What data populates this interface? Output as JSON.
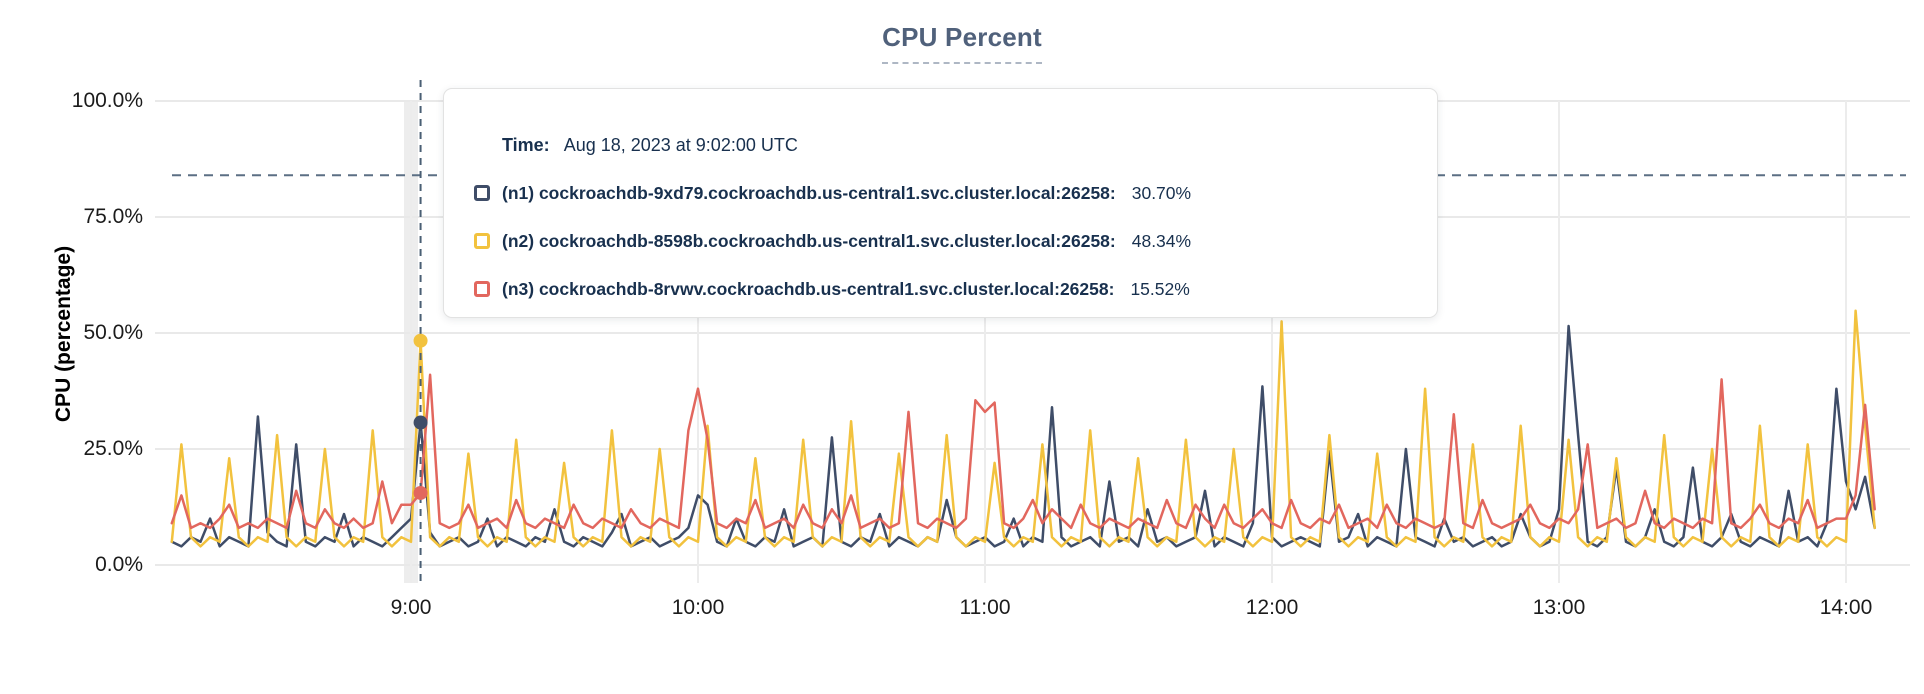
{
  "title": "CPU Percent",
  "colors": {
    "n1": "#3f4d68",
    "n2": "#f2c23e",
    "n3": "#e2675e",
    "grid": "#e9e9e9",
    "hover_band": "#ededed",
    "threshold_dash": "#5b6f84",
    "hover_dash": "#4a5f74",
    "tooltip_text": "#18304e"
  },
  "y_axis": {
    "label": "CPU (percentage)",
    "ticks": [
      {
        "label": "0.0%",
        "value": 0
      },
      {
        "label": "25.0%",
        "value": 25
      },
      {
        "label": "50.0%",
        "value": 50
      },
      {
        "label": "75.0%",
        "value": 75
      },
      {
        "label": "100.0%",
        "value": 100
      }
    ]
  },
  "x_axis": {
    "ticks": [
      {
        "label": "9:00",
        "minutes": 540
      },
      {
        "label": "10:00",
        "minutes": 600
      },
      {
        "label": "11:00",
        "minutes": 660
      },
      {
        "label": "12:00",
        "minutes": 720
      },
      {
        "label": "13:00",
        "minutes": 780
      },
      {
        "label": "14:00",
        "minutes": 840
      }
    ]
  },
  "tooltip": {
    "time_label": "Time:",
    "time_value": "Aug 18, 2023 at 9:02:00 UTC",
    "rows": [
      {
        "series": "n1",
        "name": "(n1) cockroachdb-9xd79.cockroachdb.us-central1.svc.cluster.local:26258:",
        "value": "30.70%"
      },
      {
        "series": "n2",
        "name": "(n2) cockroachdb-8598b.cockroachdb.us-central1.svc.cluster.local:26258:",
        "value": "48.34%"
      },
      {
        "series": "n3",
        "name": "(n3) cockroachdb-8rvwv.cockroachdb.us-central1.svc.cluster.local:26258:",
        "value": "15.52%"
      }
    ]
  },
  "chart_data": {
    "type": "line",
    "title": "CPU Percent",
    "xlabel": "",
    "ylabel": "CPU (percentage)",
    "ylim": [
      0,
      100
    ],
    "y_tick_labels": [
      "0.0%",
      "25.0%",
      "50.0%",
      "75.0%",
      "100.0%"
    ],
    "x_tick_labels": [
      "9:00",
      "10:00",
      "11:00",
      "12:00",
      "13:00",
      "14:00"
    ],
    "grid": true,
    "legend_position": "tooltip-overlay",
    "x_start_min": 490,
    "x_step_min": 2,
    "threshold_percent": 84,
    "hover": {
      "x_min": 542,
      "time": "Aug 18, 2023 at 9:02:00 UTC",
      "values": {
        "n1": 30.7,
        "n2": 48.34,
        "n3": 15.52
      }
    },
    "series": [
      {
        "id": "n1",
        "name": "(n1) cockroachdb-9xd79.cockroachdb.us-central1.svc.cluster.local:26258",
        "color": "#3f4d68",
        "values": [
          5,
          4,
          6,
          5,
          10,
          4,
          6,
          5,
          4,
          32,
          7,
          5,
          4,
          26,
          5,
          4,
          6,
          5,
          11,
          4,
          6,
          5,
          4,
          6,
          8,
          10,
          30.7,
          7,
          4,
          5,
          6,
          4,
          5,
          10,
          4,
          6,
          5,
          4,
          6,
          5,
          12,
          5,
          4,
          6,
          5,
          4,
          7,
          11,
          4,
          5,
          6,
          4,
          5,
          6,
          8,
          15,
          13,
          5,
          4,
          10,
          5,
          4,
          6,
          5,
          12,
          4,
          5,
          6,
          4,
          27.5,
          5,
          4,
          6,
          5,
          11,
          4,
          6,
          5,
          4,
          6,
          5,
          14,
          6,
          4,
          5,
          6,
          4,
          5,
          10,
          4,
          6,
          5,
          34,
          6,
          4,
          5,
          6,
          4,
          18,
          5,
          6,
          4,
          12,
          5,
          6,
          4,
          5,
          6,
          16,
          4,
          6,
          5,
          4,
          9,
          38.5,
          6,
          4,
          5,
          6,
          5,
          4,
          24.5,
          5,
          6,
          11,
          4,
          6,
          5,
          4,
          25,
          6,
          5,
          4,
          10,
          5,
          6,
          4,
          5,
          6,
          4,
          5,
          11,
          6,
          4,
          5,
          12,
          51.5,
          28,
          5,
          4,
          6,
          21,
          5,
          4,
          6,
          12,
          5,
          4,
          6,
          21,
          5,
          4,
          6,
          11,
          5,
          4,
          6,
          5,
          4,
          16,
          5,
          6,
          4,
          9,
          38,
          18,
          12,
          19,
          8
        ]
      },
      {
        "id": "n2",
        "name": "(n2) cockroachdb-8598b.cockroachdb.us-central1.svc.cluster.local:26258",
        "color": "#f2c23e",
        "values": [
          5,
          26,
          6,
          4,
          6,
          5,
          23,
          6,
          4,
          6,
          5,
          28,
          6,
          4,
          6,
          5,
          25,
          6,
          4,
          6,
          5,
          29,
          6,
          4,
          6,
          5,
          48.3,
          6,
          4,
          6,
          5,
          24,
          6,
          4,
          6,
          5,
          27,
          6,
          4,
          6,
          5,
          22,
          6,
          4,
          6,
          5,
          29,
          6,
          4,
          6,
          5,
          25,
          6,
          4,
          6,
          5,
          30,
          6,
          4,
          6,
          5,
          23,
          6,
          4,
          6,
          5,
          27,
          6,
          4,
          6,
          5,
          31,
          6,
          4,
          6,
          5,
          24,
          6,
          4,
          6,
          5,
          28,
          6,
          4,
          6,
          5,
          22,
          6,
          4,
          6,
          5,
          26,
          6,
          4,
          6,
          5,
          29,
          6,
          4,
          6,
          5,
          23,
          6,
          4,
          6,
          5,
          27,
          6,
          4,
          6,
          5,
          25,
          6,
          4,
          6,
          5,
          52.5,
          6,
          4,
          6,
          5,
          28,
          6,
          4,
          6,
          5,
          24,
          6,
          4,
          6,
          5,
          38,
          6,
          4,
          6,
          5,
          26,
          6,
          4,
          6,
          5,
          30,
          6,
          4,
          6,
          5,
          27,
          6,
          4,
          6,
          5,
          23,
          6,
          4,
          6,
          5,
          28,
          6,
          4,
          6,
          5,
          25,
          6,
          4,
          6,
          5,
          30,
          6,
          4,
          6,
          5,
          26,
          6,
          4,
          6,
          5,
          54.8,
          30,
          8
        ]
      },
      {
        "id": "n3",
        "name": "(n3) cockroachdb-8rvwv.cockroachdb.us-central1.svc.cluster.local:26258",
        "color": "#e2675e",
        "values": [
          9,
          15,
          8,
          9,
          8,
          10,
          13,
          8,
          9,
          8,
          10,
          9,
          8,
          16,
          9,
          8,
          12,
          9,
          8,
          10,
          8,
          9,
          18,
          9,
          13,
          13,
          15.5,
          41,
          9,
          8,
          9,
          13,
          8,
          9,
          10,
          8,
          14,
          9,
          8,
          10,
          9,
          8,
          13,
          9,
          8,
          10,
          9,
          8,
          12,
          9,
          8,
          10,
          9,
          8,
          29,
          38,
          27,
          9,
          8,
          10,
          9,
          14,
          8,
          9,
          10,
          8,
          13,
          9,
          8,
          12,
          9,
          15,
          8,
          9,
          10,
          8,
          9,
          33,
          9,
          8,
          10,
          9,
          8,
          10,
          35.5,
          33,
          35,
          9,
          8,
          10,
          14,
          9,
          12,
          10,
          8,
          13,
          9,
          8,
          10,
          9,
          8,
          10,
          9,
          8,
          14,
          9,
          8,
          13,
          10,
          8,
          13,
          9,
          8,
          10,
          12,
          9,
          8,
          14,
          9,
          8,
          10,
          9,
          13,
          8,
          9,
          10,
          8,
          13,
          9,
          8,
          10,
          9,
          8,
          9,
          32.5,
          9,
          8,
          14,
          9,
          8,
          9,
          10,
          13,
          9,
          8,
          10,
          9,
          12,
          26,
          8,
          9,
          10,
          8,
          9,
          16,
          9,
          8,
          10,
          9,
          8,
          10,
          9,
          40,
          9,
          8,
          10,
          13,
          9,
          8,
          10,
          9,
          14,
          8,
          9,
          10,
          10,
          15,
          34.5,
          12
        ]
      }
    ]
  }
}
